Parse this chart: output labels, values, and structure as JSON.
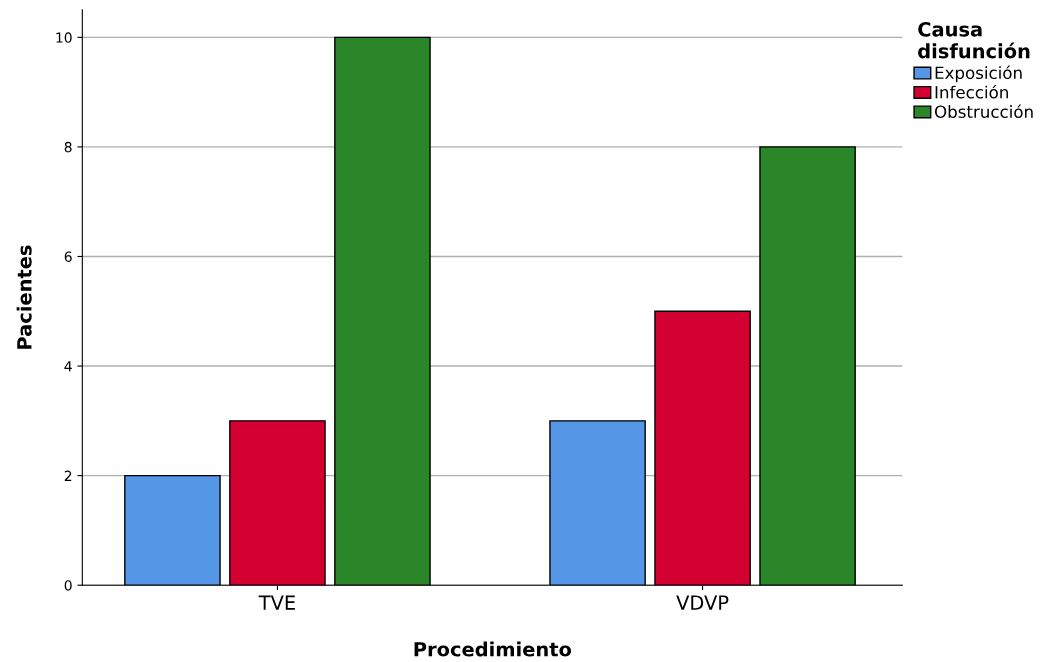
{
  "chart_data": {
    "type": "bar",
    "xlabel": "Procedimiento",
    "ylabel": "Pacientes",
    "legend_title": "Causa\ndisfunción",
    "categories": [
      "TVE",
      "VDVP"
    ],
    "series": [
      {
        "name": "Exposición",
        "color": "#5596e6",
        "values": [
          2,
          3
        ]
      },
      {
        "name": "Infección",
        "color": "#d50032",
        "values": [
          3,
          5
        ]
      },
      {
        "name": "Obstrucción",
        "color": "#2a8629",
        "values": [
          10,
          8
        ]
      }
    ],
    "ylim": [
      0,
      10.5
    ],
    "yticks": [
      0,
      2,
      4,
      6,
      8,
      10
    ],
    "grid": "y",
    "legend": "top right"
  }
}
